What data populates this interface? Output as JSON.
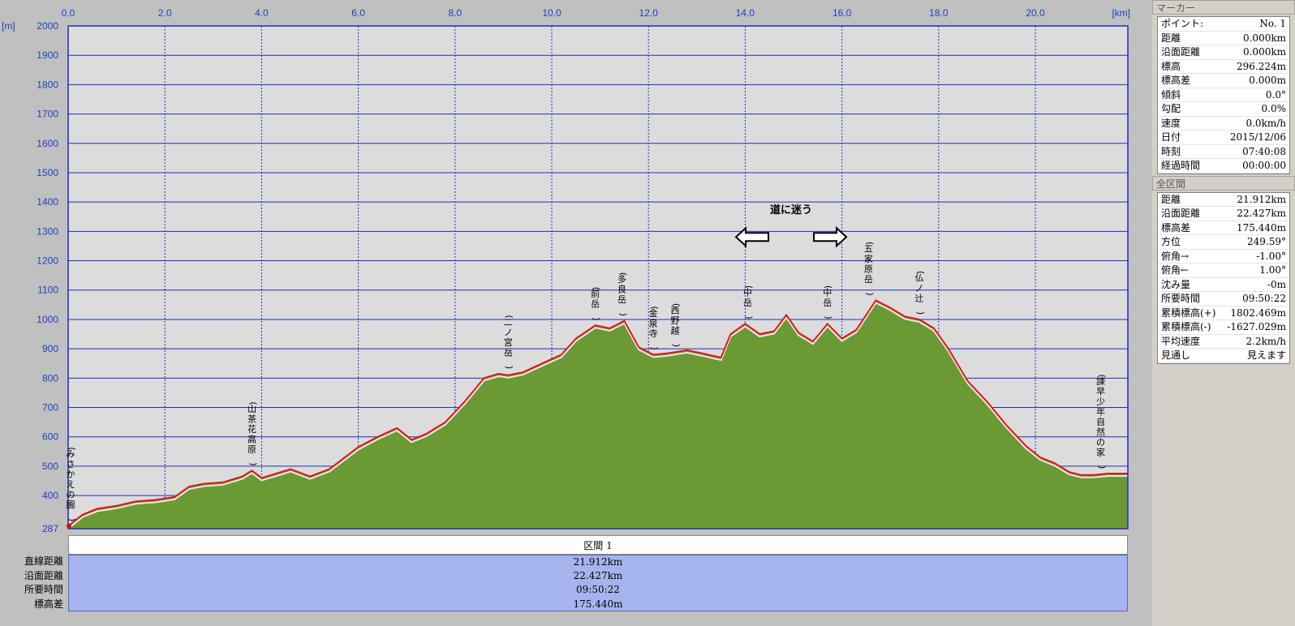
{
  "chart_data": {
    "type": "area",
    "x_unit": "[km]",
    "y_unit": "[m]",
    "xlim": [
      0,
      21.912
    ],
    "ylim": [
      287,
      2000
    ],
    "x_ticks": [
      "0.0",
      "2.0",
      "4.0",
      "6.0",
      "8.0",
      "10.0",
      "12.0",
      "14.0",
      "16.0",
      "18.0",
      "20.0"
    ],
    "x_tick_values": [
      0,
      2,
      4,
      6,
      8,
      10,
      12,
      14,
      16,
      18,
      20
    ],
    "y_ticks": [
      "2000",
      "1900",
      "1800",
      "1700",
      "1600",
      "1500",
      "1400",
      "1300",
      "1200",
      "1100",
      "1000",
      "900",
      "800",
      "700",
      "600",
      "500",
      "400",
      "287"
    ],
    "y_tick_values": [
      2000,
      1900,
      1800,
      1700,
      1600,
      1500,
      1400,
      1300,
      1200,
      1100,
      1000,
      900,
      800,
      700,
      600,
      500,
      400,
      287
    ],
    "grid": true,
    "profile": {
      "x": [
        0,
        0.3,
        0.6,
        1,
        1.4,
        1.8,
        2.2,
        2.5,
        2.8,
        3.2,
        3.6,
        3.8,
        4,
        4.3,
        4.6,
        5,
        5.4,
        5.8,
        6,
        6.4,
        6.8,
        7.1,
        7.4,
        7.8,
        8.2,
        8.6,
        8.9,
        9.1,
        9.4,
        9.8,
        10.2,
        10.5,
        10.9,
        11.2,
        11.5,
        11.8,
        12.1,
        12.4,
        12.8,
        13.1,
        13.5,
        13.7,
        14,
        14.3,
        14.6,
        14.85,
        15.1,
        15.4,
        15.7,
        16,
        16.3,
        16.7,
        17,
        17.3,
        17.6,
        17.9,
        18.2,
        18.6,
        19,
        19.4,
        19.8,
        20.1,
        20.4,
        20.7,
        20.95,
        21.2,
        21.5,
        21.912
      ],
      "y": [
        296,
        335,
        355,
        365,
        380,
        385,
        395,
        430,
        440,
        445,
        465,
        485,
        460,
        475,
        490,
        465,
        490,
        540,
        565,
        600,
        630,
        590,
        610,
        650,
        720,
        800,
        815,
        810,
        820,
        850,
        880,
        935,
        980,
        970,
        995,
        905,
        880,
        885,
        895,
        885,
        870,
        950,
        985,
        950,
        960,
        1015,
        955,
        925,
        985,
        935,
        965,
        1065,
        1040,
        1010,
        1000,
        970,
        900,
        790,
        720,
        640,
        570,
        530,
        510,
        480,
        470,
        470,
        475,
        475
      ]
    },
    "peaks": [
      {
        "x": 0.05,
        "y": 296,
        "label": "(みさかえの園)"
      },
      {
        "x": 3.8,
        "y": 485,
        "label": "(山茶花高原)"
      },
      {
        "x": 9.1,
        "y": 815,
        "label": "(二ノ宮岳)"
      },
      {
        "x": 10.9,
        "y": 980,
        "label": "(前岳)"
      },
      {
        "x": 11.45,
        "y": 995,
        "label": "(多良岳)"
      },
      {
        "x": 12.1,
        "y": 880,
        "label": "(金泉寺)"
      },
      {
        "x": 12.55,
        "y": 890,
        "label": "(西野越)"
      },
      {
        "x": 14.05,
        "y": 985,
        "label": "(中岳)"
      },
      {
        "x": 15.7,
        "y": 985,
        "label": "(中岳)"
      },
      {
        "x": 16.55,
        "y": 1065,
        "label": "(五家原岳)"
      },
      {
        "x": 17.6,
        "y": 1000,
        "label": "(仏ノ辻)"
      },
      {
        "x": 21.35,
        "y": 475,
        "label": "(諫早少年自然の家)"
      }
    ],
    "annotation": {
      "text": "道に迷う",
      "x": 14.95,
      "y": 1375
    }
  },
  "summary": {
    "section_label": "区間 1",
    "rows": [
      {
        "label": "直線距離",
        "value": "21.912km"
      },
      {
        "label": "沿面距離",
        "value": "22.427km"
      },
      {
        "label": "所要時間",
        "value": "09:50:22"
      },
      {
        "label": "標高差",
        "value": "175.440m"
      }
    ]
  },
  "marker_panel": {
    "title": "マーカー",
    "rows": [
      {
        "k": "ポイント:",
        "v": "No. 1"
      },
      {
        "k": "距離",
        "v": "0.000km"
      },
      {
        "k": "沿面距離",
        "v": "0.000km"
      },
      {
        "k": "標高",
        "v": "296.224m"
      },
      {
        "k": "標高差",
        "v": "0.000m"
      },
      {
        "k": "傾斜",
        "v": "0.0°"
      },
      {
        "k": "勾配",
        "v": "0.0%"
      },
      {
        "k": "速度",
        "v": "0.0km/h"
      },
      {
        "k": "日付",
        "v": "2015/12/06"
      },
      {
        "k": "時刻",
        "v": "07:40:08"
      },
      {
        "k": "経過時間",
        "v": "00:00:00"
      }
    ]
  },
  "total_panel": {
    "title": "全区間",
    "rows": [
      {
        "k": "距離",
        "v": "21.912km"
      },
      {
        "k": "沿面距離",
        "v": "22.427km"
      },
      {
        "k": "標高差",
        "v": "175.440m"
      },
      {
        "k": "方位",
        "v": "249.59°"
      },
      {
        "k": "俯角→",
        "v": "-1.00°"
      },
      {
        "k": "俯角←",
        "v": "1.00°"
      },
      {
        "k": "沈み量",
        "v": "-0m"
      },
      {
        "k": "所要時間",
        "v": "09:50:22"
      },
      {
        "k": "累積標高(+)",
        "v": "1802.469m"
      },
      {
        "k": "累積標高(-)",
        "v": "-1627.029m"
      },
      {
        "k": "平均速度",
        "v": "2.2km/h"
      },
      {
        "k": "見通し",
        "v": "見えます"
      }
    ]
  },
  "colors": {
    "terrain": "#6b9a35",
    "profile_line": "#e01818",
    "grid": "#1e2fb8",
    "plot_bg": "#dcdcdc"
  }
}
